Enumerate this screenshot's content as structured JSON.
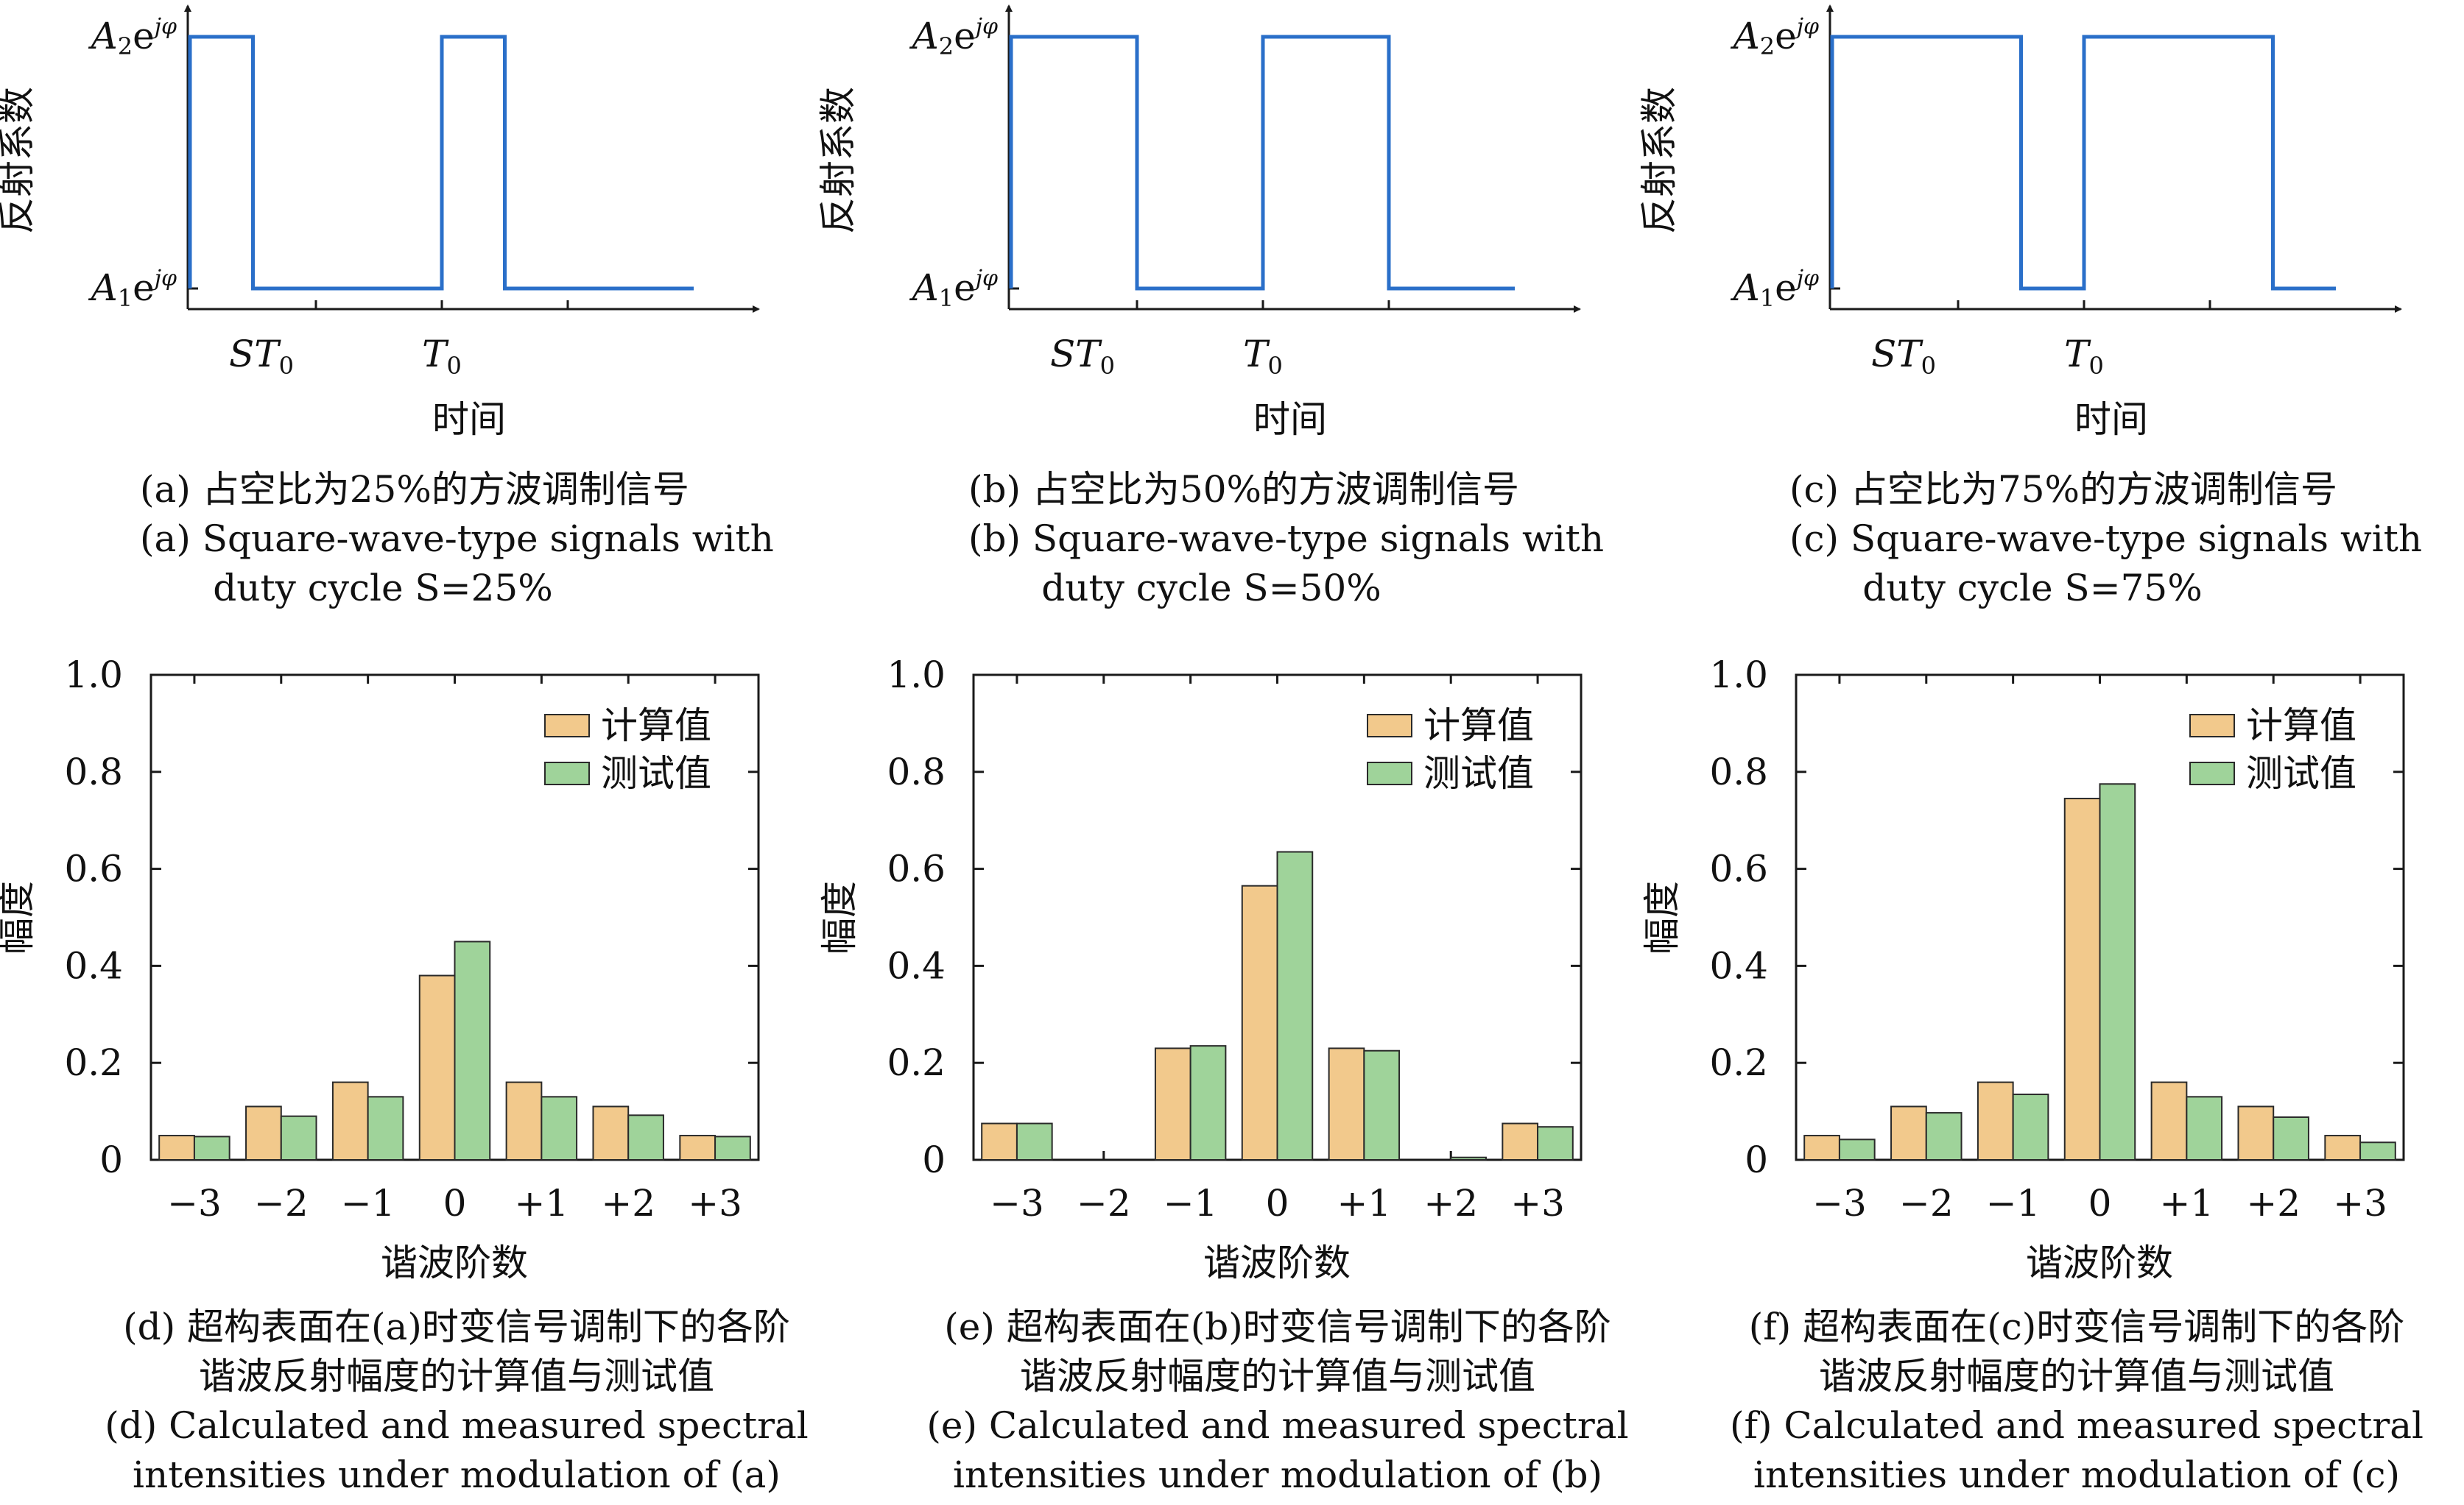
{
  "chart_data": [
    {
      "type": "line",
      "panel": "a",
      "ylabel": "反射系数",
      "xlabel": "时间",
      "y_tick_labels": [
        "A₁e^{jφ}",
        "A₂e^{jφ}"
      ],
      "x_tick_labels": [
        "ST₀",
        "T₀"
      ],
      "duty_cycle": 0.25,
      "series": [
        {
          "x": [
            0,
            0,
            0.25,
            0.25,
            1,
            1,
            1.25,
            1.25,
            2
          ],
          "y": [
            1,
            2,
            2,
            1,
            1,
            2,
            2,
            1,
            1
          ]
        }
      ],
      "caption_cn": "(a) 占空比为25%的方波调制信号",
      "caption_en": [
        "(a) Square-wave-type signals with",
        "duty cycle S=25%"
      ]
    },
    {
      "type": "line",
      "panel": "b",
      "ylabel": "反射系数",
      "xlabel": "时间",
      "y_tick_labels": [
        "A₁e^{jφ}",
        "A₂e^{jφ}"
      ],
      "x_tick_labels": [
        "ST₀",
        "T₀"
      ],
      "duty_cycle": 0.5,
      "series": [
        {
          "x": [
            0,
            0,
            0.5,
            0.5,
            1,
            1,
            1.5,
            1.5,
            2
          ],
          "y": [
            1,
            2,
            2,
            1,
            1,
            2,
            2,
            1,
            1
          ]
        }
      ],
      "caption_cn": "(b) 占空比为50%的方波调制信号",
      "caption_en": [
        "(b) Square-wave-type signals with",
        "duty cycle S=50%"
      ]
    },
    {
      "type": "line",
      "panel": "c",
      "ylabel": "反射系数",
      "xlabel": "时间",
      "y_tick_labels": [
        "A₁e^{jφ}",
        "A₂e^{jφ}"
      ],
      "x_tick_labels": [
        "ST₀",
        "T₀"
      ],
      "duty_cycle": 0.75,
      "series": [
        {
          "x": [
            0,
            0,
            0.75,
            0.75,
            1,
            1,
            1.75,
            1.75,
            2
          ],
          "y": [
            1,
            2,
            2,
            1,
            1,
            2,
            2,
            1,
            1
          ]
        }
      ],
      "caption_cn": "(c) 占空比为75%的方波调制信号",
      "caption_en": [
        "(c) Square-wave-type signals with",
        "duty cycle S=75%"
      ]
    },
    {
      "type": "bar",
      "panel": "d",
      "categories": [
        "−3",
        "−2",
        "−1",
        "0",
        "+1",
        "+2",
        "+3"
      ],
      "series": [
        {
          "name": "计算值",
          "values": [
            0.05,
            0.11,
            0.16,
            0.38,
            0.16,
            0.11,
            0.05
          ]
        },
        {
          "name": "测试值",
          "values": [
            0.048,
            0.09,
            0.13,
            0.45,
            0.13,
            0.092,
            0.048
          ]
        }
      ],
      "ylim": [
        0,
        1.0
      ],
      "yticks": [
        0,
        0.2,
        0.4,
        0.6,
        0.8,
        1.0
      ],
      "ytick_labels": [
        "0",
        "0.2",
        "0.4",
        "0.6",
        "0.8",
        "1.0"
      ],
      "xlabel": "谐波阶数",
      "ylabel": "幅度",
      "legend_position": "top-right",
      "caption_cn": [
        "(d) 超构表面在(a)时变信号调制下的各阶",
        "谐波反射幅度的计算值与测试值"
      ],
      "caption_en": [
        "(d) Calculated and measured spectral",
        "intensities under modulation of (a)"
      ]
    },
    {
      "type": "bar",
      "panel": "e",
      "categories": [
        "−3",
        "−2",
        "−1",
        "0",
        "+1",
        "+2",
        "+3"
      ],
      "series": [
        {
          "name": "计算值",
          "values": [
            0.075,
            0,
            0.23,
            0.565,
            0.23,
            0,
            0.075
          ]
        },
        {
          "name": "测试值",
          "values": [
            0.075,
            0,
            0.235,
            0.635,
            0.225,
            0.005,
            0.068
          ]
        }
      ],
      "ylim": [
        0,
        1.0
      ],
      "yticks": [
        0,
        0.2,
        0.4,
        0.6,
        0.8,
        1.0
      ],
      "ytick_labels": [
        "0",
        "0.2",
        "0.4",
        "0.6",
        "0.8",
        "1.0"
      ],
      "xlabel": "谐波阶数",
      "ylabel": "幅度",
      "legend_position": "top-right",
      "caption_cn": [
        "(e) 超构表面在(b)时变信号调制下的各阶",
        "谐波反射幅度的计算值与测试值"
      ],
      "caption_en": [
        "(e) Calculated and measured spectral",
        "intensities under modulation of (b)"
      ]
    },
    {
      "type": "bar",
      "panel": "f",
      "categories": [
        "−3",
        "−2",
        "−1",
        "0",
        "+1",
        "+2",
        "+3"
      ],
      "series": [
        {
          "name": "计算值",
          "values": [
            0.05,
            0.11,
            0.16,
            0.745,
            0.16,
            0.11,
            0.05
          ]
        },
        {
          "name": "测试值",
          "values": [
            0.042,
            0.097,
            0.135,
            0.775,
            0.13,
            0.088,
            0.036
          ]
        }
      ],
      "ylim": [
        0,
        1.0
      ],
      "yticks": [
        0,
        0.2,
        0.4,
        0.6,
        0.8,
        1.0
      ],
      "ytick_labels": [
        "0",
        "0.2",
        "0.4",
        "0.6",
        "0.8",
        "1.0"
      ],
      "xlabel": "谐波阶数",
      "ylabel": "幅度",
      "legend_position": "top-right",
      "caption_cn": [
        "(f) 超构表面在(c)时变信号调制下的各阶",
        "谐波反射幅度的计算值与测试值"
      ],
      "caption_en": [
        "(f) Calculated and measured spectral",
        "intensities under modulation of (c)"
      ]
    }
  ],
  "colors": {
    "signal_line": "#2a6fc9",
    "calculated_bar": "#f2c98c",
    "measured_bar": "#9fd39a",
    "axis": "#1a1a1a"
  }
}
